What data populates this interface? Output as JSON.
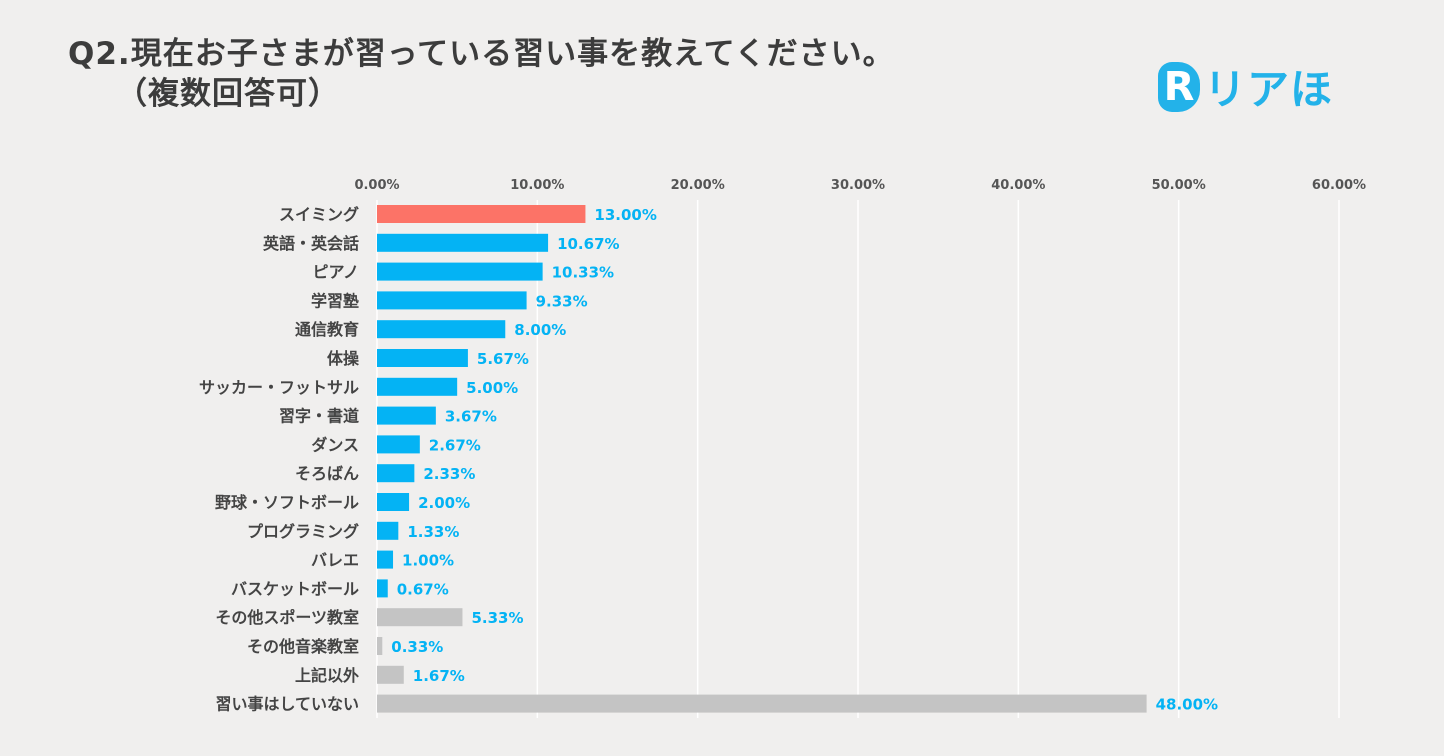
{
  "title": {
    "line1": "Q2.現在お子さまが習っている習い事を教えてください。",
    "line2": "（複数回答可）"
  },
  "logo": {
    "mark": "R",
    "text": "リアほ"
  },
  "colors": {
    "highlight": "#fc7367",
    "primary": "#04b3f4",
    "other": "#c4c4c4",
    "label": "#04b3f4",
    "category": "#444444",
    "tick": "#555555",
    "grid": "#ffffff"
  },
  "chart_data": {
    "type": "bar",
    "orientation": "horizontal",
    "title": "Q2.現在お子さまが習っている習い事を教えてください。（複数回答可）",
    "xlim": [
      0,
      60
    ],
    "ticks": [
      "0.00%",
      "10.00%",
      "20.00%",
      "30.00%",
      "40.00%",
      "50.00%",
      "60.00%"
    ],
    "tick_values": [
      0,
      10,
      20,
      30,
      40,
      50,
      60
    ],
    "axis_position": "top",
    "grid": true,
    "categories": [
      "スイミング",
      "英語・英会話",
      "ピアノ",
      "学習塾",
      "通信教育",
      "体操",
      "サッカー・フットサル",
      "習字・書道",
      "ダンス",
      "そろばん",
      "野球・ソフトボール",
      "プログラミング",
      "バレエ",
      "バスケットボール",
      "その他スポーツ教室",
      "その他音楽教室",
      "上記以外",
      "習い事はしていない"
    ],
    "values": [
      13.0,
      10.67,
      10.33,
      9.33,
      8.0,
      5.67,
      5.0,
      3.67,
      2.67,
      2.33,
      2.0,
      1.33,
      1.0,
      0.67,
      5.33,
      0.33,
      1.67,
      48.0
    ],
    "labels": [
      "13.00%",
      "10.67%",
      "10.33%",
      "9.33%",
      "8.00%",
      "5.67%",
      "5.00%",
      "3.67%",
      "2.67%",
      "2.33%",
      "2.00%",
      "1.33%",
      "1.00%",
      "0.67%",
      "5.33%",
      "0.33%",
      "1.67%",
      "48.00%"
    ],
    "bar_color_groups": [
      "highlight",
      "primary",
      "primary",
      "primary",
      "primary",
      "primary",
      "primary",
      "primary",
      "primary",
      "primary",
      "primary",
      "primary",
      "primary",
      "primary",
      "other",
      "other",
      "other",
      "other"
    ]
  }
}
